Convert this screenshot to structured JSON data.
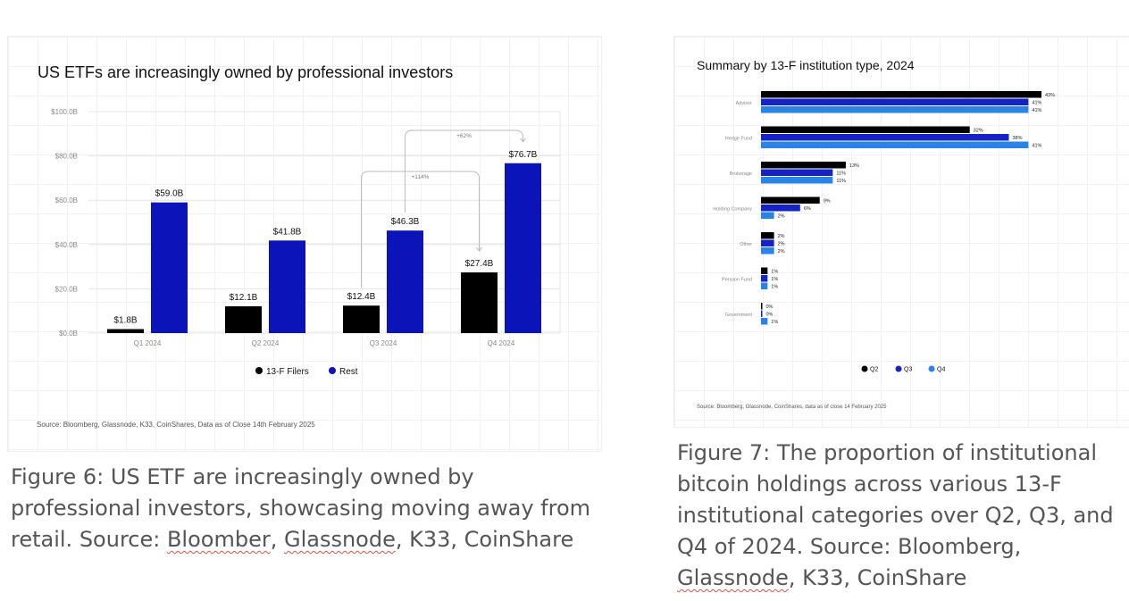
{
  "colors": {
    "black": "#000000",
    "blue": "#0a14b8",
    "navy": "#1522c4",
    "light_blue": "#2a84e6",
    "axis_text": "#888888",
    "caption": "#555555"
  },
  "figure6": {
    "title": "US ETFs are increasingly owned by professional investors",
    "source": "Source: Bloomberg, Glassnode, K33, CoinShares, Data as of Close 14th February 2025",
    "caption": {
      "before": "Figure 6: US ETF are increasingly owned by professional investors, showcasing moving away from retail. Source: ",
      "word1": "Bloomber",
      "mid": ", ",
      "word2": "Glassnode",
      "after": ", K33, CoinShare"
    },
    "annotations": [
      "+62%",
      "+114%"
    ]
  },
  "figure7": {
    "title": "Summary by 13-F institution type, 2024",
    "source": "Source: Bloomberg, Glassnode, CoinShares, data as of close 14 February 2025",
    "caption": {
      "before": "Figure 7: The proportion of institutional bitcoin holdings across various 13-F institutional categories over Q2, Q3, and Q4 of 2024. Source: Bloomberg, ",
      "word1": "Glassnode",
      "after": ", K33, CoinShare"
    }
  },
  "chart_data": [
    {
      "type": "bar",
      "title": "US ETFs are increasingly owned by professional investors",
      "categories": [
        "Q1 2024",
        "Q2 2024",
        "Q3 2024",
        "Q4 2024"
      ],
      "series": [
        {
          "name": "13-F Filers",
          "values": [
            1.8,
            12.1,
            12.4,
            27.4
          ],
          "labels": [
            "$1.8B",
            "$12.1B",
            "$12.4B",
            "$27.4B"
          ],
          "color": "#000000"
        },
        {
          "name": "Rest",
          "values": [
            59.0,
            41.8,
            46.3,
            76.7
          ],
          "labels": [
            "$59.0B",
            "$41.8B",
            "$46.3B",
            "$76.7B"
          ],
          "color": "#0a14b8"
        }
      ],
      "yticks": [
        "$0.0B",
        "$20.0B",
        "$40.0B",
        "$60.0B",
        "$80.0B",
        "$100.0B"
      ],
      "ylim": [
        0,
        100
      ],
      "grid": true,
      "legend": "bottom-center",
      "annotations": [
        "+62%",
        "+114%"
      ]
    },
    {
      "type": "bar",
      "orientation": "horizontal",
      "title": "Summary by 13-F institution type, 2024",
      "categories": [
        "Advisor",
        "Hedge Fund",
        "Brokerage",
        "Holding Company",
        "Other",
        "Pension Fund",
        "Government"
      ],
      "series": [
        {
          "name": "Q2",
          "values": [
            43,
            32,
            13,
            9,
            2,
            1,
            0
          ],
          "labels": [
            "43%",
            "32%",
            "13%",
            "9%",
            "2%",
            "1%",
            "0%"
          ],
          "color": "#000000"
        },
        {
          "name": "Q3",
          "values": [
            41,
            38,
            11,
            6,
            2,
            1,
            0
          ],
          "labels": [
            "41%",
            "38%",
            "11%",
            "6%",
            "2%",
            "1%",
            "0%"
          ],
          "color": "#1522c4"
        },
        {
          "name": "Q4",
          "values": [
            41,
            41,
            11,
            2,
            2,
            1,
            1
          ],
          "labels": [
            "41%",
            "41%",
            "11%",
            "2%",
            "2%",
            "1%",
            "1%"
          ],
          "color": "#2a84e6"
        }
      ],
      "legend": "bottom-center",
      "xlim": [
        0,
        43
      ]
    }
  ]
}
